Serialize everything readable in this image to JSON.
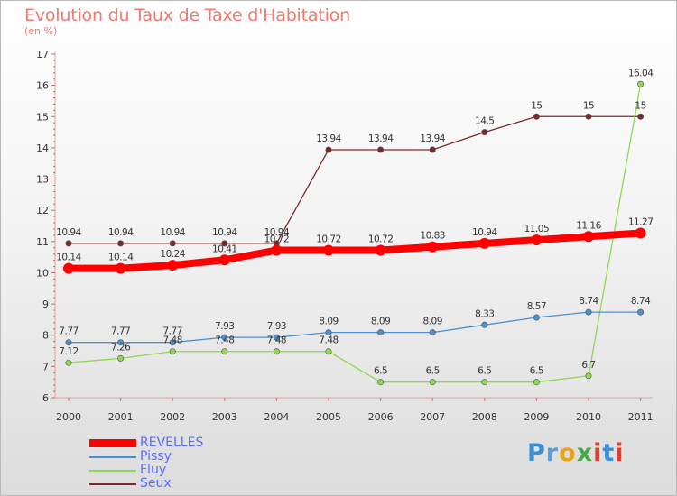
{
  "title": "Evolution du Taux de Taxe d'Habitation",
  "subtitle": "(en %)",
  "logo_text": "Proxiti",
  "chart_data": {
    "type": "line",
    "title": "Evolution du Taux de Taxe d'Habitation",
    "subtitle": "(en %)",
    "x": [
      "2000",
      "2001",
      "2002",
      "2003",
      "2004",
      "2005",
      "2006",
      "2007",
      "2008",
      "2009",
      "2010",
      "2011"
    ],
    "ylim": [
      6,
      17
    ],
    "yticks": [
      6,
      7,
      8,
      9,
      10,
      11,
      12,
      13,
      14,
      15,
      16,
      17
    ],
    "grid": false,
    "legend_position": "bottom-left",
    "series": [
      {
        "name": "REVELLES",
        "color": "#ff0000",
        "values": [
          10.14,
          10.14,
          10.24,
          10.41,
          10.72,
          10.72,
          10.72,
          10.83,
          10.94,
          11.05,
          11.16,
          11.27
        ],
        "labels": [
          "10.14",
          "10.14",
          "10.24",
          "10.41",
          "10.72",
          "10.72",
          "10.72",
          "10.83",
          "10.94",
          "11.05",
          "11.16",
          "11.27"
        ]
      },
      {
        "name": "Pissy",
        "color": "#4d8fcf",
        "values": [
          7.77,
          7.77,
          7.77,
          7.93,
          7.93,
          8.09,
          8.09,
          8.09,
          8.33,
          8.57,
          8.74,
          8.74
        ],
        "labels": [
          "7.77",
          "7.77",
          "7.77",
          "7.93",
          "7.93",
          "8.09",
          "8.09",
          "8.09",
          "8.33",
          "8.57",
          "8.74",
          "8.74"
        ]
      },
      {
        "name": "Fluy",
        "color": "#8fd84f",
        "values": [
          7.12,
          7.26,
          7.48,
          7.48,
          7.48,
          7.48,
          6.5,
          6.5,
          6.5,
          6.5,
          6.7,
          16.04
        ],
        "labels": [
          "7.12",
          "7.26",
          "7.48",
          "7.48",
          "7.48",
          "7.48",
          "6.5",
          "6.5",
          "6.5",
          "6.5",
          "6.7",
          "16.04"
        ]
      },
      {
        "name": "Seux",
        "color": "#7b2a2a",
        "values": [
          10.94,
          10.94,
          10.94,
          10.94,
          10.94,
          13.94,
          13.94,
          13.94,
          14.5,
          15,
          15,
          15
        ],
        "labels": [
          "10.94",
          "10.94",
          "10.94",
          "10.94",
          "10.94",
          "13.94",
          "13.94",
          "13.94",
          "14.5",
          "15",
          "15",
          "15"
        ]
      }
    ]
  }
}
